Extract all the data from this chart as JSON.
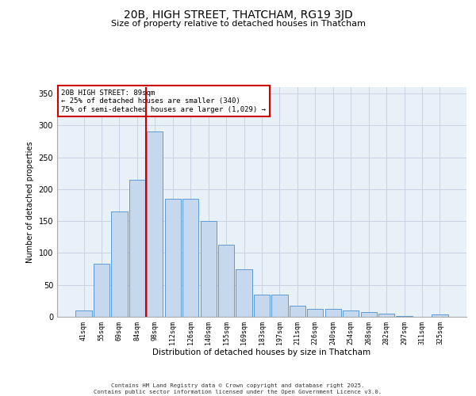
{
  "title": "20B, HIGH STREET, THATCHAM, RG19 3JD",
  "subtitle": "Size of property relative to detached houses in Thatcham",
  "xlabel": "Distribution of detached houses by size in Thatcham",
  "ylabel": "Number of detached properties",
  "categories": [
    "41sqm",
    "55sqm",
    "69sqm",
    "84sqm",
    "98sqm",
    "112sqm",
    "126sqm",
    "140sqm",
    "155sqm",
    "169sqm",
    "183sqm",
    "197sqm",
    "211sqm",
    "226sqm",
    "240sqm",
    "254sqm",
    "268sqm",
    "282sqm",
    "297sqm",
    "311sqm",
    "325sqm"
  ],
  "values": [
    10,
    83,
    165,
    215,
    290,
    185,
    185,
    150,
    113,
    75,
    35,
    35,
    18,
    13,
    13,
    10,
    7,
    5,
    1,
    0,
    4
  ],
  "bar_color": "#c5d8ed",
  "bar_edge_color": "#5b9bd5",
  "red_line_x": 3.5,
  "annotation_text": "20B HIGH STREET: 89sqm\n← 25% of detached houses are smaller (340)\n75% of semi-detached houses are larger (1,029) →",
  "annotation_box_color": "#ffffff",
  "annotation_box_edge": "#cc0000",
  "grid_color": "#c8d4e3",
  "background_color": "#e8f0f8",
  "footer": "Contains HM Land Registry data © Crown copyright and database right 2025.\nContains public sector information licensed under the Open Government Licence v3.0.",
  "ylim": [
    0,
    360
  ],
  "yticks": [
    0,
    50,
    100,
    150,
    200,
    250,
    300,
    350
  ]
}
